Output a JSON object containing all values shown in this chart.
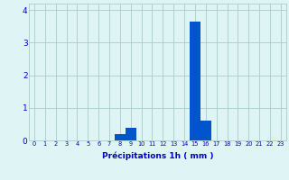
{
  "hours": [
    0,
    1,
    2,
    3,
    4,
    5,
    6,
    7,
    8,
    9,
    10,
    11,
    12,
    13,
    14,
    15,
    16,
    17,
    18,
    19,
    20,
    21,
    22,
    23
  ],
  "values": [
    0,
    0,
    0,
    0,
    0,
    0,
    0,
    0,
    0.2,
    0.4,
    0,
    0,
    0,
    0,
    0,
    3.65,
    0.6,
    0,
    0,
    0,
    0,
    0,
    0,
    0
  ],
  "bar_color": "#0055cc",
  "background_color": "#dff4f4",
  "grid_color": "#aacccc",
  "xlabel": "Précipitations 1h ( mm )",
  "xlabel_color": "#0000cc",
  "tick_color": "#0000cc",
  "ylim": [
    0,
    4.2
  ],
  "yticks": [
    0,
    1,
    2,
    3,
    4
  ],
  "xtick_fontsize": 4.8,
  "ytick_fontsize": 6.5,
  "xlabel_fontsize": 6.5
}
